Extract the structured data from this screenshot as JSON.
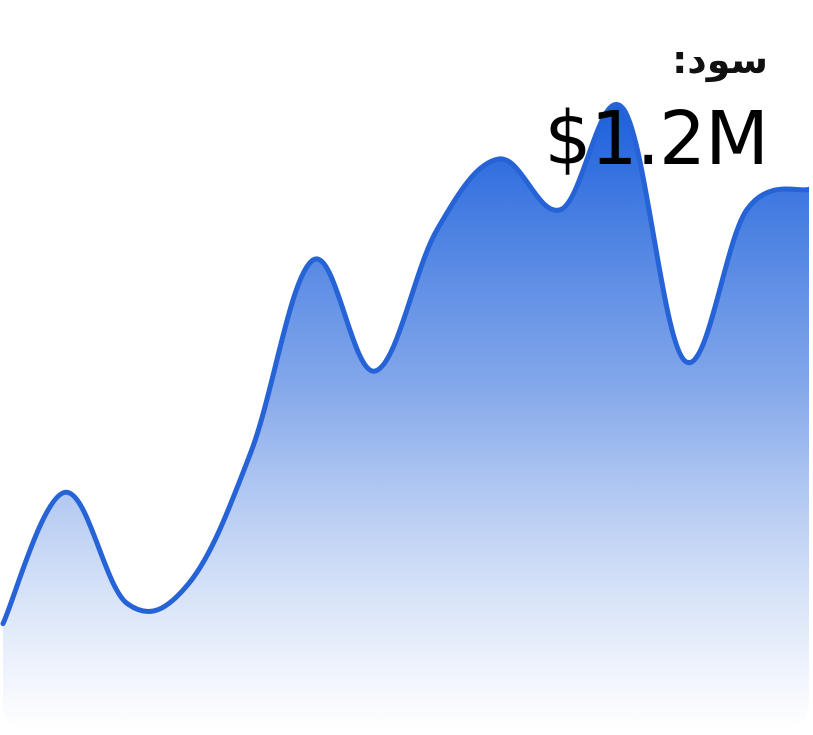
{
  "header": {
    "label": "سود:",
    "value": "$1.2M"
  },
  "colors": {
    "line": "#2563d6",
    "fill_top": "#1a5fdc",
    "fill_bottom": "#ffffff"
  },
  "chart_data": {
    "type": "area",
    "title": "",
    "xlabel": "",
    "ylabel": "",
    "grid": false,
    "legend": "none",
    "ylim": [
      0,
      100
    ],
    "series": [
      {
        "values": [
          44,
          57,
          46,
          48,
          61,
          80,
          69,
          83,
          90,
          85,
          95,
          70,
          85,
          87
        ]
      }
    ]
  }
}
